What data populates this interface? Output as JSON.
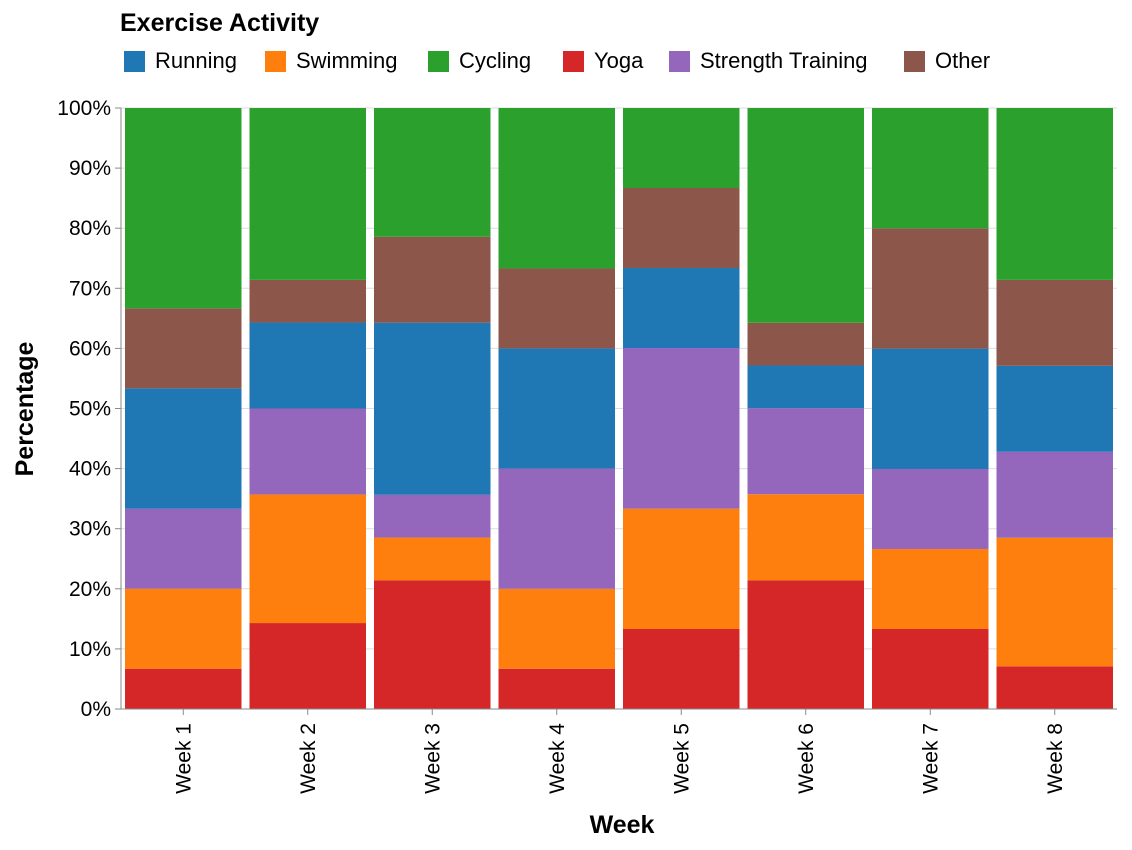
{
  "chart_data": {
    "type": "bar",
    "stacked": "normalized",
    "legend": {
      "title": "Exercise Activity",
      "placement": "top-left"
    },
    "xlabel": "Week",
    "ylabel": "Percentage",
    "ylim": [
      0,
      100
    ],
    "grid": true,
    "categories": [
      "Week 1",
      "Week 2",
      "Week 3",
      "Week 4",
      "Week 5",
      "Week 6",
      "Week 7",
      "Week 8"
    ],
    "y_ticks": [
      "0%",
      "10%",
      "20%",
      "30%",
      "40%",
      "50%",
      "60%",
      "70%",
      "80%",
      "90%",
      "100%"
    ],
    "legend_order": [
      "Running",
      "Swimming",
      "Cycling",
      "Yoga",
      "Strength Training",
      "Other"
    ],
    "stack_order": [
      "Yoga",
      "Swimming",
      "Strength Training",
      "Running",
      "Other",
      "Cycling"
    ],
    "colors": {
      "Running": "#1f77b4",
      "Swimming": "#ff7f0e",
      "Cycling": "#2ca02c",
      "Yoga": "#d62728",
      "Strength Training": "#9467bd",
      "Other": "#8c564b"
    },
    "series": [
      {
        "name": "Running",
        "values": [
          20.0,
          14.3,
          28.6,
          20.0,
          13.3,
          7.1,
          20.0,
          14.3
        ]
      },
      {
        "name": "Swimming",
        "values": [
          13.3,
          21.4,
          7.1,
          13.3,
          20.0,
          14.3,
          13.3,
          21.4
        ]
      },
      {
        "name": "Cycling",
        "values": [
          33.3,
          28.6,
          21.4,
          26.7,
          13.3,
          35.7,
          20.0,
          28.6
        ]
      },
      {
        "name": "Yoga",
        "values": [
          6.7,
          14.3,
          21.4,
          6.7,
          13.3,
          21.4,
          13.3,
          7.1
        ]
      },
      {
        "name": "Strength Training",
        "values": [
          13.3,
          14.3,
          7.1,
          20.0,
          26.7,
          14.3,
          13.3,
          14.3
        ]
      },
      {
        "name": "Other",
        "values": [
          13.3,
          7.1,
          14.3,
          13.3,
          13.3,
          7.1,
          20.0,
          14.3
        ]
      }
    ]
  }
}
